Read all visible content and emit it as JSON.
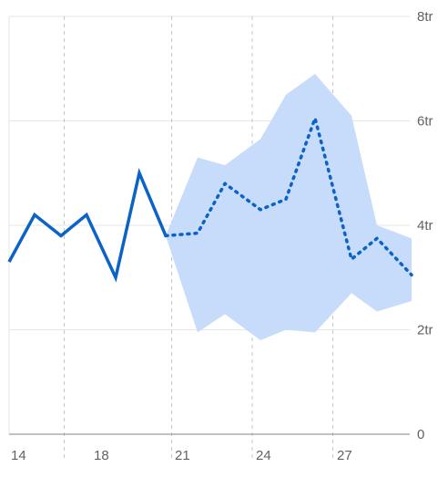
{
  "chart_data": {
    "type": "line",
    "title": "",
    "xlabel": "",
    "ylabel": "",
    "x_ticks": [
      "14",
      "18",
      "21",
      "24",
      "27"
    ],
    "y_ticks": [
      "0",
      "2tr",
      "4tr",
      "6tr",
      "8tr"
    ],
    "ylim": [
      0,
      8
    ],
    "xlim": [
      13.6,
      30
    ],
    "grid": true,
    "colors": {
      "history": "#0b63c8",
      "forecast": "#0b63c8",
      "band": "#c6dcfa",
      "grid": "#e6e6e6",
      "axis": "#9e9e9e"
    },
    "series": [
      {
        "role": "history",
        "style": "solid",
        "x": [
          13.6,
          14.6,
          15.6,
          16.6,
          17.6,
          18.6,
          19.6
        ],
        "y": [
          3.3,
          4.2,
          3.8,
          4.2,
          3.0,
          5.0,
          3.8
        ]
      },
      {
        "role": "forecast",
        "style": "dotted",
        "x": [
          19.6,
          20.6,
          21.6,
          22.6,
          23.6,
          24.6,
          25.6,
          26.6,
          27.6,
          28.6,
          29.6
        ],
        "y": [
          3.8,
          3.85,
          4.8,
          4.3,
          4.5,
          6.05,
          3.35,
          3.75,
          3.05,
          null,
          null
        ]
      },
      {
        "role": "confidence-band",
        "style": "area",
        "x": [
          19.6,
          20.6,
          21.6,
          22.6,
          23.6,
          24.6,
          25.6,
          26.6,
          27.6
        ],
        "upper": [
          3.8,
          5.3,
          5.15,
          5.65,
          6.5,
          6.9,
          6.1,
          4.0,
          3.75
        ],
        "lower": [
          3.8,
          1.95,
          2.3,
          1.8,
          2.0,
          1.95,
          2.7,
          2.35,
          2.55
        ]
      }
    ]
  }
}
